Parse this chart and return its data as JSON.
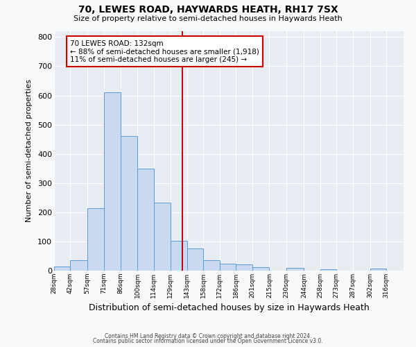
{
  "title": "70, LEWES ROAD, HAYWARDS HEATH, RH17 7SX",
  "subtitle": "Size of property relative to semi-detached houses in Haywards Heath",
  "xlabel": "Distribution of semi-detached houses by size in Haywards Heath",
  "ylabel": "Number of semi-detached properties",
  "bin_labels": [
    "28sqm",
    "42sqm",
    "57sqm",
    "71sqm",
    "86sqm",
    "100sqm",
    "114sqm",
    "129sqm",
    "143sqm",
    "158sqm",
    "172sqm",
    "186sqm",
    "201sqm",
    "215sqm",
    "230sqm",
    "244sqm",
    "258sqm",
    "273sqm",
    "287sqm",
    "302sqm",
    "316sqm"
  ],
  "bin_edges": [
    21,
    35,
    49.5,
    64,
    78.5,
    93,
    107,
    121.5,
    136,
    150,
    164,
    178,
    192.5,
    207,
    221.5,
    237,
    251,
    265,
    279,
    294,
    308,
    323
  ],
  "bar_values": [
    15,
    35,
    215,
    610,
    460,
    350,
    233,
    103,
    77,
    35,
    23,
    22,
    12,
    0,
    10,
    0,
    4,
    0,
    0,
    6,
    0
  ],
  "bar_color": "#c9d9f0",
  "bar_edge_color": "#5b9bd5",
  "property_value": 132,
  "vline_color": "#cc0000",
  "annotation_line1": "70 LEWES ROAD: 132sqm",
  "annotation_line2": "← 88% of semi-detached houses are smaller (1,918)",
  "annotation_line3": "11% of semi-detached houses are larger (245) →",
  "annotation_box_color": "#ffffff",
  "annotation_box_edge_color": "#cc0000",
  "ylim": [
    0,
    820
  ],
  "yticks": [
    0,
    100,
    200,
    300,
    400,
    500,
    600,
    700,
    800
  ],
  "bg_color": "#e8edf4",
  "fig_bg_color": "#f8f9fb",
  "footer1": "Contains HM Land Registry data © Crown copyright and database right 2024.",
  "footer2": "Contains public sector information licensed under the Open Government Licence v3.0."
}
